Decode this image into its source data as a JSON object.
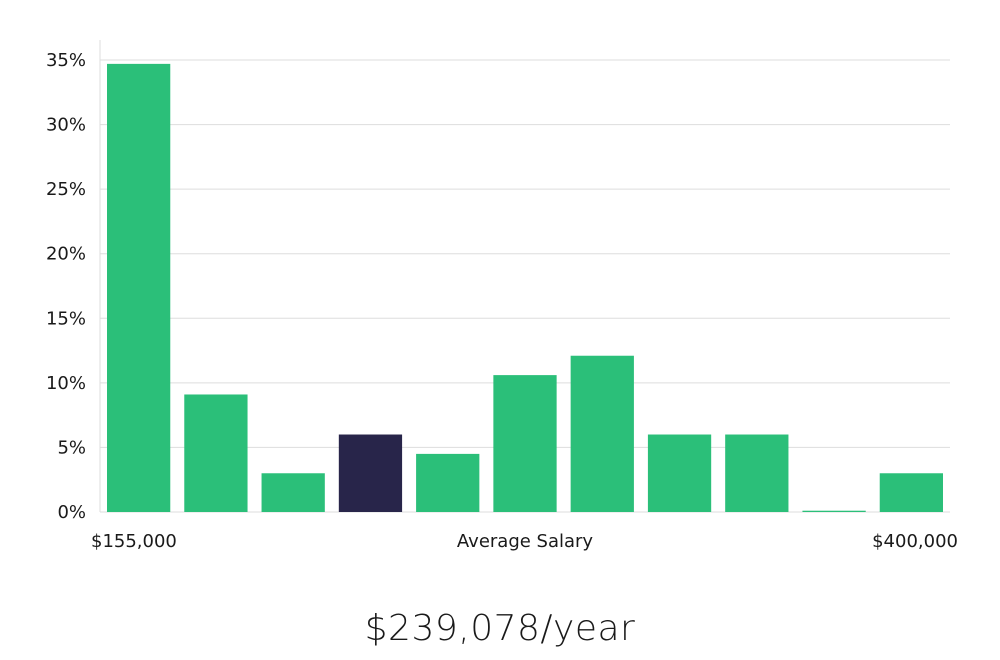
{
  "chart_data": {
    "type": "bar",
    "values": [
      34.7,
      9.1,
      3.0,
      6.0,
      4.5,
      10.6,
      12.1,
      6.0,
      6.0,
      0.1,
      3.0
    ],
    "highlight_index": 3,
    "ylim": [
      0,
      35
    ],
    "y_ticks": [
      "0%",
      "5%",
      "10%",
      "15%",
      "20%",
      "25%",
      "30%",
      "35%"
    ],
    "x_min_label": "$155,000",
    "xlabel": "Average Salary",
    "x_max_label": "$400,000",
    "grid": true,
    "colors": {
      "bar": "#2bbf79",
      "highlight": "#28254a",
      "grid": "#dddddd"
    }
  },
  "caption": "$239,078/year"
}
